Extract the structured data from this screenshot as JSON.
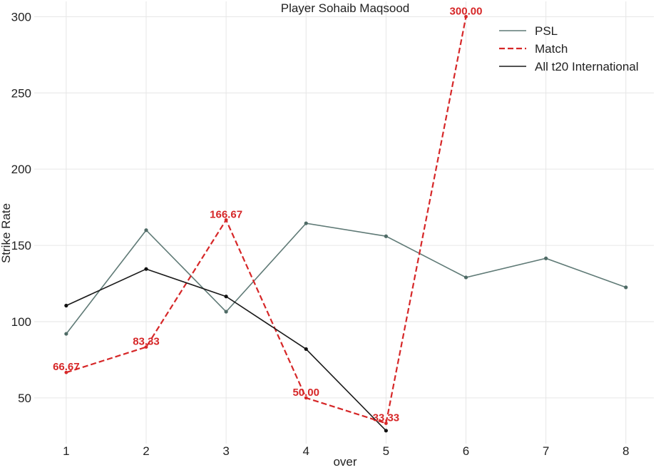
{
  "chart_data": {
    "type": "line",
    "title": "Player Sohaib Maqsood",
    "xlabel": "over",
    "ylabel": "Strike Rate",
    "xlim": [
      0.6,
      8.35
    ],
    "ylim": [
      20,
      310
    ],
    "x_ticks": [
      1,
      2,
      3,
      4,
      5,
      6,
      7,
      8
    ],
    "y_ticks": [
      50,
      100,
      150,
      200,
      250,
      300
    ],
    "grid": true,
    "legend_position": "top-right",
    "series": [
      {
        "name": "PSL",
        "style": "solid",
        "color": "#5f7a76",
        "marker_color": "#4f6b66",
        "x": [
          1,
          2,
          3,
          4,
          5,
          6,
          7,
          8
        ],
        "y": [
          92,
          160,
          106.5,
          164.5,
          156,
          129,
          141.5,
          122.5
        ],
        "show_labels": false
      },
      {
        "name": "Match",
        "style": "dashed",
        "color": "#d62728",
        "marker_color": "#d62728",
        "x": [
          1,
          2,
          3,
          4,
          5,
          6
        ],
        "y": [
          66.67,
          83.33,
          166.67,
          50.0,
          33.33,
          300.0
        ],
        "labels": [
          "66.67",
          "83.33",
          "166.67",
          "50.00",
          "33.33",
          "300.00"
        ],
        "show_labels": true
      },
      {
        "name": "All t20 International",
        "style": "solid",
        "color": "#1a1a1a",
        "marker_color": "#111111",
        "x": [
          1,
          2,
          3,
          4,
          5
        ],
        "y": [
          110.5,
          134.5,
          116.5,
          82,
          28.5
        ],
        "show_labels": false
      }
    ]
  }
}
